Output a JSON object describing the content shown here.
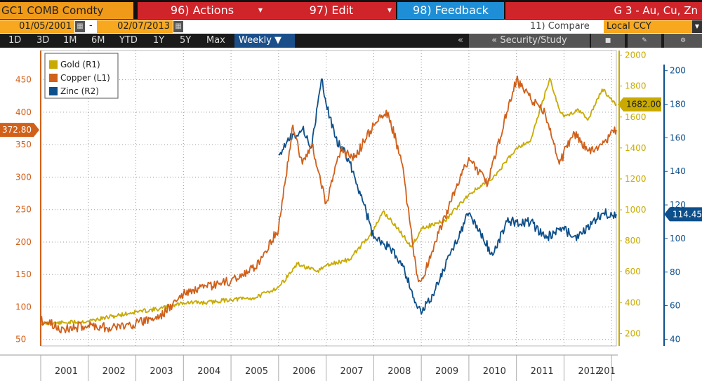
{
  "header": {
    "ticker": "GC1 COMB Comdty",
    "actions": "96) Actions",
    "edit": "97) Edit",
    "feedback": "98) Feedback",
    "chart_title": "G 3 - Au, Cu, Zn"
  },
  "dates": {
    "start": "01/05/2001",
    "end": "02/07/2013"
  },
  "compare": "11) Compare",
  "currency": "Local CCY",
  "periods": [
    "1D",
    "3D",
    "1M",
    "6M",
    "YTD",
    "1Y",
    "5Y",
    "Max"
  ],
  "frequency": "Weekly ▼",
  "collapse": "«",
  "security_study": "« Security/Study",
  "colors": {
    "gold": "#c8aa00",
    "copper": "#d0601a",
    "zinc": "#0d4f8a",
    "grid": "#9a9a9a"
  },
  "chart_data": {
    "type": "line",
    "title": "",
    "x_label": "",
    "x_ticks": [
      "2001",
      "2002",
      "2003",
      "2004",
      "2005",
      "2006",
      "2007",
      "2008",
      "2009",
      "2010",
      "2011",
      "2012",
      "201"
    ],
    "axes": {
      "left": {
        "series": "Copper",
        "ticks": [
          50,
          100,
          150,
          200,
          250,
          300,
          350,
          400,
          450
        ],
        "range": [
          40,
          495
        ],
        "last_value": "372.80"
      },
      "right1": {
        "series": "Gold",
        "ticks": [
          200,
          400,
          600,
          800,
          1000,
          1200,
          1400,
          1600,
          1800,
          2000
        ],
        "range": [
          200,
          2000
        ],
        "last_value": "1682.00"
      },
      "right2": {
        "series": "Zinc",
        "ticks": [
          40,
          60,
          80,
          100,
          120,
          140,
          160,
          180,
          200
        ],
        "range": [
          36,
          212
        ],
        "last_value": "114.45"
      }
    },
    "legend": [
      "Gold (R1)",
      "Copper (L1)",
      "Zinc (R2)"
    ],
    "legend_position": "top-left",
    "grid": true,
    "series": [
      {
        "name": "Gold (R1)",
        "axis": "right1",
        "x": [
          2001.0,
          2001.5,
          2002.0,
          2002.5,
          2003.0,
          2003.5,
          2004.0,
          2004.5,
          2005.0,
          2005.5,
          2006.0,
          2006.4,
          2006.8,
          2007.0,
          2007.5,
          2008.0,
          2008.2,
          2008.5,
          2008.8,
          2009.0,
          2009.5,
          2010.0,
          2010.5,
          2011.0,
          2011.3,
          2011.7,
          2011.9,
          2012.0,
          2012.3,
          2012.5,
          2012.8,
          2013.1
        ],
        "values": [
          265,
          270,
          280,
          310,
          340,
          360,
          400,
          400,
          420,
          430,
          500,
          650,
          600,
          640,
          680,
          870,
          990,
          880,
          760,
          880,
          930,
          1100,
          1200,
          1400,
          1450,
          1850,
          1650,
          1600,
          1650,
          1580,
          1780,
          1682
        ]
      },
      {
        "name": "Copper (L1)",
        "axis": "left",
        "x": [
          2001.0,
          2001.5,
          2002.0,
          2002.5,
          2003.0,
          2003.5,
          2004.0,
          2004.5,
          2005.0,
          2005.5,
          2006.0,
          2006.3,
          2006.5,
          2006.7,
          2007.0,
          2007.3,
          2007.6,
          2008.0,
          2008.3,
          2008.6,
          2008.9,
          2009.0,
          2009.5,
          2010.0,
          2010.4,
          2010.8,
          2011.0,
          2011.3,
          2011.6,
          2011.9,
          2012.2,
          2012.5,
          2012.8,
          2013.1
        ],
        "values": [
          80,
          65,
          72,
          68,
          75,
          85,
          120,
          130,
          140,
          160,
          220,
          380,
          320,
          350,
          260,
          340,
          330,
          380,
          400,
          320,
          150,
          140,
          240,
          330,
          290,
          400,
          450,
          420,
          400,
          320,
          370,
          340,
          350,
          372.8
        ]
      },
      {
        "name": "Zinc (R2)",
        "axis": "right2",
        "x": [
          2006.0,
          2006.2,
          2006.5,
          2006.7,
          2006.9,
          2007.0,
          2007.2,
          2007.5,
          2007.8,
          2008.0,
          2008.3,
          2008.6,
          2008.9,
          2009.0,
          2009.3,
          2009.6,
          2010.0,
          2010.3,
          2010.5,
          2010.8,
          2011.0,
          2011.3,
          2011.6,
          2011.9,
          2012.0,
          2012.3,
          2012.6,
          2012.8,
          2013.1
        ],
        "values": [
          150,
          160,
          165,
          155,
          195,
          180,
          160,
          145,
          120,
          100,
          95,
          85,
          60,
          55,
          70,
          90,
          115,
          100,
          90,
          110,
          110,
          110,
          100,
          105,
          105,
          100,
          110,
          115,
          114.45
        ]
      }
    ]
  }
}
